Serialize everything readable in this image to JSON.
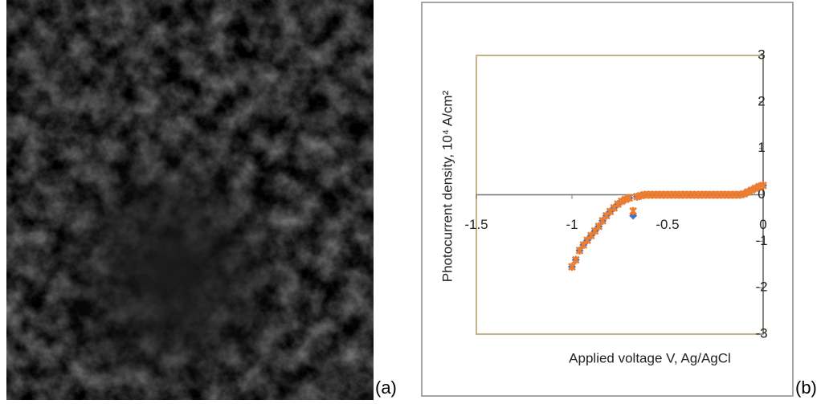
{
  "chart_data": {
    "type": "scatter",
    "panel_labels": [
      "(a)",
      "(b)"
    ],
    "x_label": "Applied voltage V, Ag/AgCl",
    "y_label": "Photocurrent density, 10⁴ A/cm²",
    "xlim": [
      -1.5,
      0
    ],
    "xticks": [
      -1.5,
      -1,
      -0.5,
      0
    ],
    "ylim": [
      -3,
      3
    ],
    "yticks": [
      -3,
      -2,
      -1,
      0,
      1,
      2,
      3
    ],
    "x": [
      -1,
      -0.98,
      -0.96,
      -0.94,
      -0.92,
      -0.9,
      -0.88,
      -0.86,
      -0.84,
      -0.82,
      -0.8,
      -0.78,
      -0.76,
      -0.74,
      -0.72,
      -0.7,
      -0.68,
      -0.66,
      -0.64,
      -0.62,
      -0.6,
      -0.58,
      -0.56,
      -0.54,
      -0.52,
      -0.5,
      -0.48,
      -0.46,
      -0.44,
      -0.42,
      -0.4,
      -0.38,
      -0.36,
      -0.34,
      -0.32,
      -0.3,
      -0.28,
      -0.26,
      -0.24,
      -0.22,
      -0.2,
      -0.18,
      -0.16,
      -0.14,
      -0.12,
      -0.1,
      -0.08,
      -0.06,
      -0.04,
      -0.02,
      0
    ],
    "series": [
      {
        "color": "#4472c4",
        "values": [
          -1.55,
          -1.4,
          -1.2,
          -1.08,
          -0.98,
          -0.88,
          -0.78,
          -0.68,
          -0.56,
          -0.45,
          -0.36,
          -0.28,
          -0.2,
          -0.14,
          -0.1,
          -0.07,
          -0.45,
          -0.04,
          -0.02,
          0,
          0,
          0,
          0,
          0,
          0,
          0,
          0,
          0,
          0,
          0,
          0,
          0,
          0,
          0,
          0,
          0,
          0,
          0,
          0,
          0,
          0,
          0,
          0,
          0,
          0,
          0.02,
          0.06,
          0.1,
          0.14,
          0.18,
          0.2
        ]
      },
      {
        "color": "#ed7d31",
        "values": [
          -1.55,
          -1.4,
          -1.2,
          -1.08,
          -0.98,
          -0.88,
          -0.78,
          -0.68,
          -0.56,
          -0.45,
          -0.36,
          -0.28,
          -0.2,
          -0.14,
          -0.1,
          -0.07,
          -0.35,
          -0.04,
          -0.02,
          0,
          0,
          0,
          0,
          0,
          0,
          0,
          0,
          0,
          0,
          0,
          0,
          0,
          0,
          0,
          0,
          0,
          0,
          0,
          0,
          0,
          0,
          0,
          0,
          0,
          0,
          0.02,
          0.06,
          0.1,
          0.14,
          0.18,
          0.2
        ]
      }
    ],
    "frame_color": "#c4b28a"
  }
}
